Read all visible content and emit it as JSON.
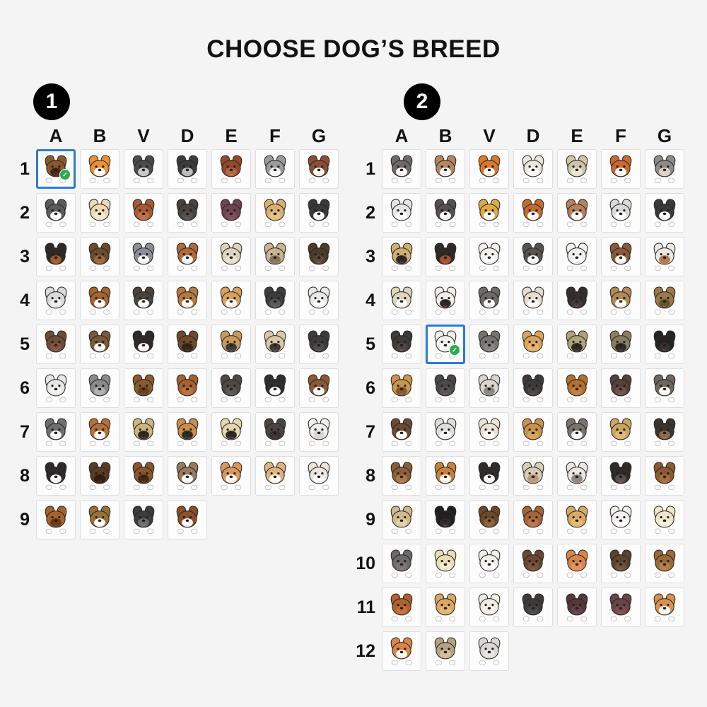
{
  "title": "CHOOSE DOG’S BREED",
  "colors": {
    "page_bg": "#f4f4f5",
    "cell_bg": "#fcfcfc",
    "cell_border": "#dedede",
    "selected_border": "#2b7bd4",
    "check_green": "#2fa84f",
    "badge_bg": "#000000",
    "badge_fg": "#ffffff",
    "text": "#121212",
    "tongue_pink": "#ee8aa0"
  },
  "icons": {
    "check_glyph": "✓",
    "dog_icon": "dog-face-with-paws"
  },
  "sections": [
    {
      "badge": "1",
      "columns": [
        "A",
        "B",
        "V",
        "D",
        "E",
        "F",
        "G"
      ],
      "rows": [
        {
          "label": "1",
          "cells": [
            {
              "f": "#8a5a2e",
              "a": "#43291a",
              "s": true
            },
            {
              "f": "#e8913a",
              "a": "#ffffff"
            },
            {
              "f": "#4b4b4d",
              "a": "#c9c9c9"
            },
            {
              "f": "#3c3c3e",
              "a": "#bdbdbd"
            },
            {
              "f": "#93492a",
              "a": "#b06a42"
            },
            {
              "f": "#9b9b9b",
              "a": "#ffffff"
            },
            {
              "f": "#8a4f33",
              "a": "#ffffff"
            }
          ]
        },
        {
          "label": "2",
          "cells": [
            {
              "f": "#5b5b5d",
              "a": "#ffffff"
            },
            {
              "f": "#ecd9b4",
              "a": "#f5e9d2"
            },
            {
              "f": "#a85a32",
              "a": "#c07244"
            },
            {
              "f": "#474340",
              "a": "#56514d"
            },
            {
              "f": "#6e4450",
              "a": "#7e4e5a"
            },
            {
              "f": "#d9b070",
              "a": "#e6c288"
            },
            {
              "f": "#3a3a3c",
              "a": "#ffffff"
            }
          ]
        },
        {
          "label": "3",
          "cells": [
            {
              "f": "#2e2a26",
              "a": "#a05c2a"
            },
            {
              "f": "#6b4a2e",
              "a": "#9a6a3e"
            },
            {
              "f": "#8a9098",
              "a": "#ffffff"
            },
            {
              "f": "#b06a3a",
              "a": "#ffffff"
            },
            {
              "f": "#ded3bc",
              "a": "#ece4d2"
            },
            {
              "f": "#c9b594",
              "a": "#84745a"
            },
            {
              "f": "#4c3b28",
              "a": "#5e4832"
            }
          ]
        },
        {
          "label": "4",
          "cells": [
            {
              "f": "#d9d9d9",
              "a": "#efefef"
            },
            {
              "f": "#a5632e",
              "a": "#ffffff"
            },
            {
              "f": "#4a4440",
              "a": "#ffffff"
            },
            {
              "f": "#b5793f",
              "a": "#ffffff"
            },
            {
              "f": "#d9a15e",
              "a": "#ffffff"
            },
            {
              "f": "#3c3c3e",
              "a": "#5a5a5c"
            },
            {
              "f": "#e9e9e7",
              "a": "#ffffff"
            }
          ]
        },
        {
          "label": "5",
          "cells": [
            {
              "f": "#6e4a38",
              "a": "#805842"
            },
            {
              "f": "#7a5a36",
              "a": "#ffffff"
            },
            {
              "f": "#2e2a28",
              "a": "#ffffff"
            },
            {
              "f": "#6e4a2a",
              "a": "#33251a"
            },
            {
              "f": "#c99a5e",
              "a": "#3a3a3a"
            },
            {
              "f": "#d9c9a8",
              "a": "#3a3a3a"
            },
            {
              "f": "#3c3c3e",
              "a": "#4c4c4e"
            }
          ]
        },
        {
          "label": "6",
          "cells": [
            {
              "f": "#e6e6e4",
              "a": "#f4f4f2"
            },
            {
              "f": "#8a8a8a",
              "a": "#b2b2b2"
            },
            {
              "f": "#8a5a2e",
              "a": "#66431f"
            },
            {
              "f": "#a5622e",
              "a": "#b9743c"
            },
            {
              "f": "#4c4846",
              "a": "#5a5654"
            },
            {
              "f": "#2e2e2e",
              "a": "#ffffff"
            },
            {
              "f": "#8a5a36",
              "a": "#ffffff"
            }
          ]
        },
        {
          "label": "7",
          "cells": [
            {
              "f": "#6e6e72",
              "a": "#ffffff"
            },
            {
              "f": "#b5703a",
              "a": "#ffffff"
            },
            {
              "f": "#cdb582",
              "a": "#2e2a26"
            },
            {
              "f": "#c98e4e",
              "a": "#2e2a26"
            },
            {
              "f": "#e6d6ae",
              "a": "#2e2a26"
            },
            {
              "f": "#4a4543",
              "a": "#37332f"
            },
            {
              "f": "#efefec",
              "a": "#dad9d4"
            }
          ]
        },
        {
          "label": "8",
          "cells": [
            {
              "f": "#2e2a2c",
              "a": "#ffffff"
            },
            {
              "f": "#5a3a22",
              "a": "#2f1e10"
            },
            {
              "f": "#8a542c",
              "a": "#432a14"
            },
            {
              "f": "#9a7a5e",
              "a": "#ffffff"
            },
            {
              "f": "#d9975e",
              "a": "#ffffff"
            },
            {
              "f": "#ddb582",
              "a": "#ffffff"
            },
            {
              "f": "#e9e5da",
              "a": "#ffffff"
            }
          ]
        },
        {
          "label": "9",
          "cells": [
            {
              "f": "#a5622e",
              "a": "#63391a"
            },
            {
              "f": "#9a7038",
              "a": "#ffffff"
            },
            {
              "f": "#3c3c3e",
              "a": "#6e6e70"
            },
            {
              "f": "#8a4f2a",
              "a": "#ffffff"
            }
          ]
        }
      ]
    },
    {
      "badge": "2",
      "columns": [
        "A",
        "B",
        "V",
        "D",
        "E",
        "F",
        "G"
      ],
      "rows": [
        {
          "label": "1",
          "cells": [
            {
              "f": "#6e6a68",
              "a": "#ffffff"
            },
            {
              "f": "#b5875e",
              "a": "#ffffff"
            },
            {
              "f": "#d9792e",
              "a": "#ffffff"
            },
            {
              "f": "#e9e6df",
              "a": "#ffffff"
            },
            {
              "f": "#cfc5a8",
              "a": "#ece6d6"
            },
            {
              "f": "#c96a2e",
              "a": "#ffffff"
            },
            {
              "f": "#8c8c88",
              "a": "#ddd6c8"
            }
          ]
        },
        {
          "label": "2",
          "cells": [
            {
              "f": "#e5e5e1",
              "a": "#ffffff"
            },
            {
              "f": "#56514f",
              "a": "#ffffff"
            },
            {
              "f": "#ddab42",
              "a": "#ffffff"
            },
            {
              "f": "#c46a2e",
              "a": "#ffffff"
            },
            {
              "f": "#b5825a",
              "a": "#ffffff"
            },
            {
              "f": "#dadad6",
              "a": "#ffffff"
            },
            {
              "f": "#3a3a3a",
              "a": "#ffffff"
            }
          ]
        },
        {
          "label": "3",
          "cells": [
            {
              "f": "#cfae72",
              "a": "#2e2a26"
            },
            {
              "f": "#2e2a28",
              "a": "#a5542e"
            },
            {
              "f": "#f1f0ed",
              "a": "#ffffff"
            },
            {
              "f": "#56524f",
              "a": "#ffffff"
            },
            {
              "f": "#f1f0ed",
              "a": "#ffffff"
            },
            {
              "f": "#8a5a36",
              "a": "#ffffff"
            },
            {
              "f": "#ede9e4",
              "a": "#b5794a"
            }
          ]
        },
        {
          "label": "4",
          "cells": [
            {
              "f": "#e1d6bd",
              "a": "#ffffff"
            },
            {
              "f": "#efeeea",
              "a": "#2e2a28"
            },
            {
              "f": "#6e6a68",
              "a": "#ffffff"
            },
            {
              "f": "#e6ddd0",
              "a": "#ffffff"
            },
            {
              "f": "#332f2e",
              "a": "#413d3b"
            },
            {
              "f": "#b08a54",
              "a": "#ffffff"
            },
            {
              "f": "#9a7a4a",
              "a": "#66522e"
            }
          ]
        },
        {
          "label": "5",
          "cells": [
            {
              "f": "#3d3b39",
              "a": "#4b4745"
            },
            {
              "f": "#f1f1ef",
              "a": "#ffffff",
              "s": true
            },
            {
              "f": "#77736f",
              "a": "#8b8783"
            },
            {
              "f": "#d9a55e",
              "a": "#e6b670"
            },
            {
              "f": "#b0a27a",
              "a": "#2e2a26"
            },
            {
              "f": "#8a7e60",
              "a": "#2e2a26"
            },
            {
              "f": "#262422",
              "a": "#343230"
            }
          ]
        },
        {
          "label": "6",
          "cells": [
            {
              "f": "#c9964e",
              "a": "#85582a"
            },
            {
              "f": "#4b4947",
              "a": "#585654"
            },
            {
              "f": "#dad6cd",
              "a": "#8b8781"
            },
            {
              "f": "#3d3b39",
              "a": "#4a4846"
            },
            {
              "f": "#b0702e",
              "a": "#c5803c"
            },
            {
              "f": "#55423a",
              "a": "#6c564a"
            },
            {
              "f": "#6e665e",
              "a": "#ffffff"
            }
          ]
        },
        {
          "label": "7",
          "cells": [
            {
              "f": "#6a4a32",
              "a": "#ffffff"
            },
            {
              "f": "#dddddb",
              "a": "#ffffff"
            },
            {
              "f": "#e9e3d5",
              "a": "#ffffff"
            },
            {
              "f": "#c9914e",
              "a": "#d7a35e"
            },
            {
              "f": "#77736f",
              "a": "#ffffff"
            },
            {
              "f": "#c9a55e",
              "a": "#dcbb78"
            },
            {
              "f": "#3a342e",
              "a": "#8a6a4a"
            }
          ]
        },
        {
          "label": "8",
          "cells": [
            {
              "f": "#8a5e3a",
              "a": "#a87a4e"
            },
            {
              "f": "#c9823a",
              "a": "#ffffff"
            },
            {
              "f": "#2e2c2a",
              "a": "#ffffff"
            },
            {
              "f": "#d9cbb5",
              "a": "#b59a7a"
            },
            {
              "f": "#e9e7e3",
              "a": "#8b8783"
            },
            {
              "f": "#2e2c2a",
              "a": "#56514d"
            },
            {
              "f": "#8a5a32",
              "a": "#a56e3e"
            }
          ]
        },
        {
          "label": "9",
          "cells": [
            {
              "f": "#cfba8e",
              "a": "#e2d2ac"
            },
            {
              "f": "#222020",
              "a": "#302e2c"
            },
            {
              "f": "#6a4a28",
              "a": "#8a6438"
            },
            {
              "f": "#a5643a",
              "a": "#ba764a"
            },
            {
              "f": "#d9a863",
              "a": "#e7ba75"
            },
            {
              "f": "#f1f0ed",
              "a": "#ffffff"
            },
            {
              "f": "#eee6c9",
              "a": "#f6f0db"
            }
          ]
        },
        {
          "label": "10",
          "cells": [
            {
              "f": "#6e6a68",
              "a": "#7c7876"
            },
            {
              "f": "#e9ddb8",
              "a": "#f3ecd2"
            },
            {
              "f": "#f1f0ed",
              "a": "#ffffff"
            },
            {
              "f": "#6a4632",
              "a": "#7c5440"
            },
            {
              "f": "#d9854a",
              "a": "#e79656"
            },
            {
              "f": "#5a4430",
              "a": "#705639"
            },
            {
              "f": "#9a6a38",
              "a": "#b48148"
            }
          ]
        },
        {
          "label": "11",
          "cells": [
            {
              "f": "#b0612e",
              "a": "#c47038"
            },
            {
              "f": "#d9a863",
              "a": "#e7ba75"
            },
            {
              "f": "#efece3",
              "a": "#f7f5ee"
            },
            {
              "f": "#3d3b39",
              "a": "#4a4846"
            },
            {
              "f": "#55383c",
              "a": "#634246"
            },
            {
              "f": "#6a4448",
              "a": "#7c4e54"
            },
            {
              "f": "#d9914e",
              "a": "#ffffff"
            }
          ]
        },
        {
          "label": "12",
          "cells": [
            {
              "f": "#d9854a",
              "a": "#ffffff"
            },
            {
              "f": "#b5a284",
              "a": "#cfc0a2"
            },
            {
              "f": "#dad8d3",
              "a": "#eae8e4"
            }
          ]
        }
      ]
    }
  ]
}
